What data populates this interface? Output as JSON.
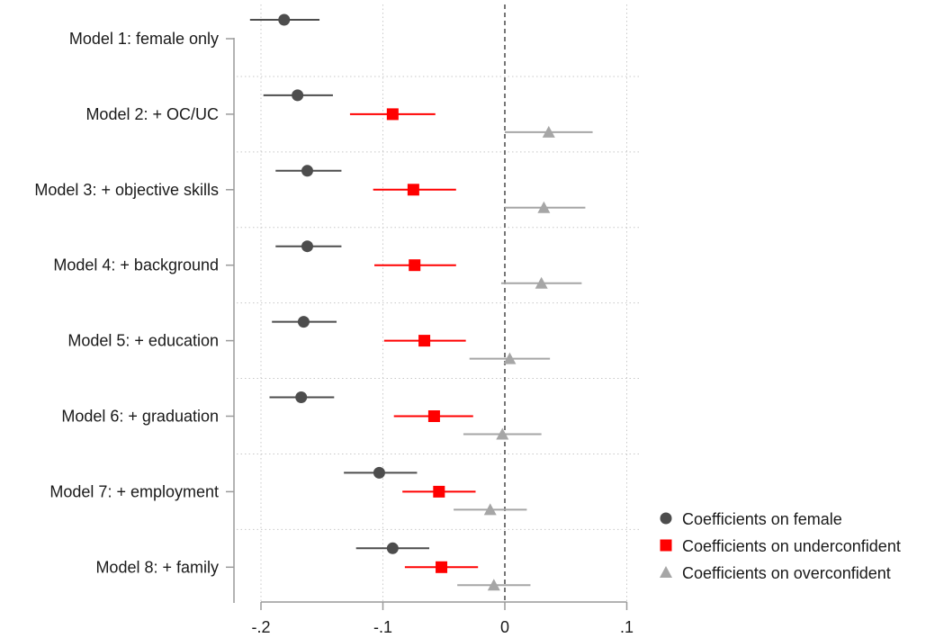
{
  "chart_data": {
    "type": "scatter",
    "subtype": "coefficient-plot",
    "title": "",
    "xlabel": "",
    "ylabel": "",
    "xlim": [
      -0.22,
      0.1
    ],
    "x_ticks": [
      -0.2,
      -0.1,
      0,
      0.1
    ],
    "x_tick_labels": [
      "-.2",
      "-.1",
      "0",
      ".1"
    ],
    "reference_line": {
      "x": 0,
      "style": "dashed"
    },
    "grid": true,
    "legend_position": "bottom-right",
    "categories": [
      "Model 1: female only",
      "Model 2: + OC/UC",
      "Model 3: + objective skills",
      "Model 4: + background",
      "Model 5: + education",
      "Model 6: + graduation",
      "Model 7: + employment",
      "Model 8: + family"
    ],
    "series": [
      {
        "name": "Coefficients on female",
        "color": "#4d4d4d",
        "marker": "circle",
        "points": [
          {
            "est": -0.181,
            "lo": -0.209,
            "hi": -0.152
          },
          {
            "est": -0.17,
            "lo": -0.198,
            "hi": -0.141
          },
          {
            "est": -0.162,
            "lo": -0.188,
            "hi": -0.134
          },
          {
            "est": -0.162,
            "lo": -0.188,
            "hi": -0.134
          },
          {
            "est": -0.165,
            "lo": -0.191,
            "hi": -0.138
          },
          {
            "est": -0.167,
            "lo": -0.193,
            "hi": -0.14
          },
          {
            "est": -0.103,
            "lo": -0.132,
            "hi": -0.072
          },
          {
            "est": -0.092,
            "lo": -0.122,
            "hi": -0.062
          }
        ]
      },
      {
        "name": "Coefficients on underconfident",
        "color": "#ff0000",
        "marker": "square",
        "points": [
          null,
          {
            "est": -0.092,
            "lo": -0.127,
            "hi": -0.057
          },
          {
            "est": -0.075,
            "lo": -0.108,
            "hi": -0.04
          },
          {
            "est": -0.074,
            "lo": -0.107,
            "hi": -0.04
          },
          {
            "est": -0.066,
            "lo": -0.099,
            "hi": -0.032
          },
          {
            "est": -0.058,
            "lo": -0.091,
            "hi": -0.026
          },
          {
            "est": -0.054,
            "lo": -0.084,
            "hi": -0.024
          },
          {
            "est": -0.052,
            "lo": -0.082,
            "hi": -0.022
          }
        ]
      },
      {
        "name": "Coefficients on overconfident",
        "color": "#a6a6a6",
        "marker": "triangle",
        "points": [
          null,
          {
            "est": 0.036,
            "lo": 0.0,
            "hi": 0.072
          },
          {
            "est": 0.032,
            "lo": 0.0,
            "hi": 0.066
          },
          {
            "est": 0.03,
            "lo": -0.003,
            "hi": 0.063
          },
          {
            "est": 0.004,
            "lo": -0.029,
            "hi": 0.037
          },
          {
            "est": -0.002,
            "lo": -0.034,
            "hi": 0.03
          },
          {
            "est": -0.012,
            "lo": -0.042,
            "hi": 0.018
          },
          {
            "est": -0.009,
            "lo": -0.039,
            "hi": 0.021
          }
        ]
      }
    ]
  }
}
